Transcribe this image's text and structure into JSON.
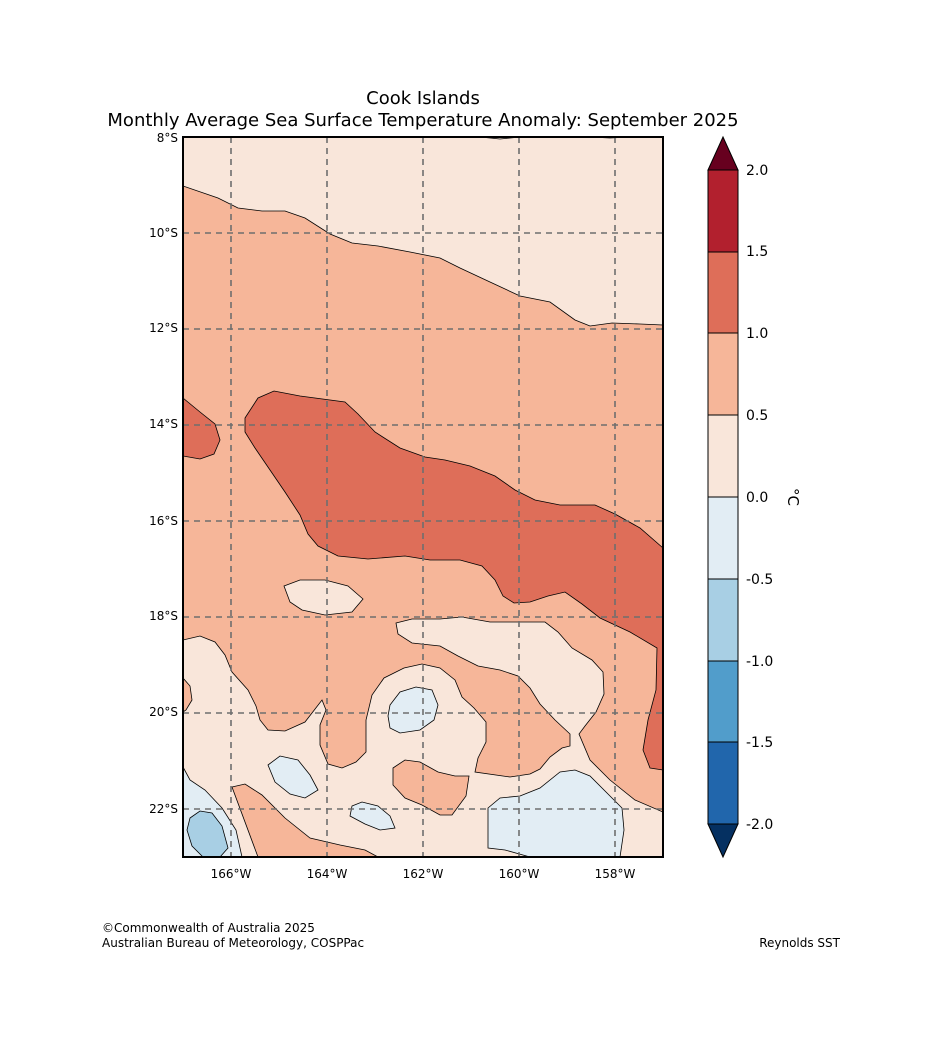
{
  "title": {
    "line1": "Cook Islands",
    "line2": "Monthly Average Sea Surface Temperature Anomaly: September 2025"
  },
  "axes": {
    "lat_labels": [
      "8°S",
      "10°S",
      "12°S",
      "14°S",
      "16°S",
      "18°S",
      "20°S",
      "22°S"
    ],
    "lon_labels": [
      "166°W",
      "164°W",
      "162°W",
      "160°W",
      "158°W"
    ]
  },
  "colorbar": {
    "unit": "°C",
    "tick_labels": [
      "2.0",
      "1.5",
      "1.0",
      "0.5",
      "0.0",
      "-0.5",
      "-1.0",
      "-1.5",
      "-2.0"
    ],
    "colors": [
      "#b2202e",
      "#de6e59",
      "#f6b699",
      "#f9e6da",
      "#e2edf4",
      "#a8cfe4",
      "#519dcb",
      "#2166ac"
    ],
    "over_color": "#67001f",
    "under_color": "#053061"
  },
  "map_colors": {
    "band_0_to_05": "#f9e6da",
    "band_05_to_1": "#f6b699",
    "band_1_to_15": "#de6e59",
    "band_m05_to_0": "#e2edf4",
    "band_m1_to_m05": "#a8cfe4"
  },
  "footer": {
    "copyright": "©Commonwealth of Australia 2025",
    "org": "Australian Bureau of Meteorology, COSPPac",
    "source": "Reynolds SST"
  }
}
